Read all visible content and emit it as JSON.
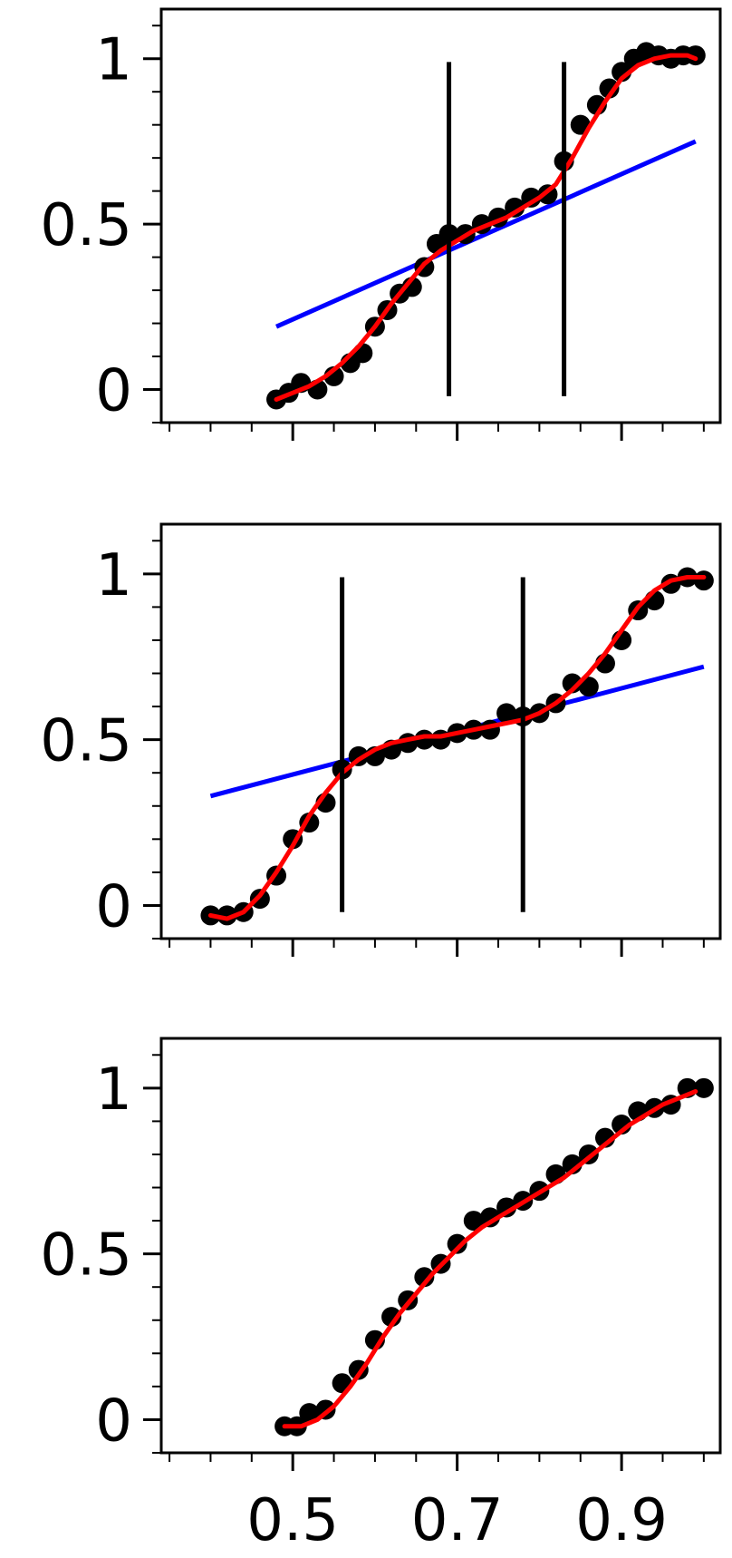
{
  "chart_data": [
    {
      "type": "scatter",
      "xlim": [
        0.34,
        1.02
      ],
      "ylim": [
        -0.1,
        1.15
      ],
      "yticks": [
        0,
        0.5,
        1
      ],
      "ytick_labels": [
        "0",
        "0.5",
        "1"
      ],
      "x_minor_step": 0.05,
      "y_minor_step": 0.1,
      "show_x_tick_labels": false,
      "points": {
        "color": "#000000",
        "x": [
          0.48,
          0.495,
          0.51,
          0.53,
          0.55,
          0.57,
          0.585,
          0.6,
          0.615,
          0.63,
          0.645,
          0.66,
          0.675,
          0.69,
          0.71,
          0.73,
          0.75,
          0.77,
          0.79,
          0.81,
          0.83,
          0.85,
          0.87,
          0.885,
          0.9,
          0.915,
          0.93,
          0.945,
          0.96,
          0.975,
          0.99
        ],
        "y": [
          -0.03,
          -0.01,
          0.02,
          0.0,
          0.04,
          0.08,
          0.11,
          0.19,
          0.24,
          0.29,
          0.31,
          0.37,
          0.44,
          0.47,
          0.47,
          0.5,
          0.52,
          0.55,
          0.58,
          0.59,
          0.69,
          0.8,
          0.86,
          0.91,
          0.96,
          1.0,
          1.02,
          1.01,
          1.0,
          1.01,
          1.01
        ]
      },
      "smooth_curve": {
        "color": "#ff0000",
        "x": [
          0.48,
          0.5,
          0.52,
          0.54,
          0.56,
          0.58,
          0.6,
          0.62,
          0.64,
          0.66,
          0.68,
          0.7,
          0.72,
          0.74,
          0.76,
          0.78,
          0.8,
          0.82,
          0.84,
          0.86,
          0.88,
          0.9,
          0.92,
          0.94,
          0.96,
          0.98,
          0.99
        ],
        "y": [
          -0.03,
          -0.01,
          0.01,
          0.04,
          0.08,
          0.13,
          0.19,
          0.26,
          0.32,
          0.38,
          0.42,
          0.45,
          0.48,
          0.5,
          0.52,
          0.55,
          0.58,
          0.62,
          0.7,
          0.79,
          0.87,
          0.94,
          0.98,
          1.0,
          1.01,
          1.01,
          1.0
        ]
      },
      "fit_line": {
        "color": "#0000ff",
        "x": [
          0.48,
          0.99
        ],
        "y": [
          0.19,
          0.75
        ]
      },
      "vlines": {
        "color": "#000000",
        "x": [
          0.69,
          0.83
        ],
        "y_range": [
          -0.02,
          0.99
        ]
      }
    },
    {
      "type": "scatter",
      "xlim": [
        0.34,
        1.02
      ],
      "ylim": [
        -0.1,
        1.15
      ],
      "yticks": [
        0,
        0.5,
        1
      ],
      "ytick_labels": [
        "0",
        "0.5",
        "1"
      ],
      "x_minor_step": 0.05,
      "y_minor_step": 0.1,
      "show_x_tick_labels": false,
      "points": {
        "color": "#000000",
        "x": [
          0.4,
          0.42,
          0.44,
          0.46,
          0.48,
          0.5,
          0.52,
          0.54,
          0.56,
          0.58,
          0.6,
          0.62,
          0.64,
          0.66,
          0.68,
          0.7,
          0.72,
          0.74,
          0.76,
          0.78,
          0.8,
          0.82,
          0.84,
          0.86,
          0.88,
          0.9,
          0.92,
          0.94,
          0.96,
          0.98,
          1.0
        ],
        "y": [
          -0.03,
          -0.03,
          -0.02,
          0.02,
          0.09,
          0.2,
          0.25,
          0.31,
          0.41,
          0.45,
          0.45,
          0.47,
          0.49,
          0.5,
          0.5,
          0.52,
          0.53,
          0.53,
          0.58,
          0.57,
          0.58,
          0.61,
          0.67,
          0.66,
          0.73,
          0.8,
          0.89,
          0.92,
          0.97,
          0.99,
          0.98
        ]
      },
      "smooth_curve": {
        "color": "#ff0000",
        "x": [
          0.4,
          0.42,
          0.44,
          0.46,
          0.48,
          0.5,
          0.52,
          0.54,
          0.56,
          0.58,
          0.6,
          0.62,
          0.64,
          0.66,
          0.68,
          0.7,
          0.72,
          0.74,
          0.76,
          0.78,
          0.8,
          0.82,
          0.84,
          0.86,
          0.88,
          0.9,
          0.92,
          0.94,
          0.96,
          0.98,
          1.0
        ],
        "y": [
          -0.03,
          -0.04,
          -0.02,
          0.03,
          0.1,
          0.18,
          0.27,
          0.34,
          0.4,
          0.44,
          0.47,
          0.49,
          0.5,
          0.51,
          0.51,
          0.52,
          0.53,
          0.54,
          0.55,
          0.56,
          0.58,
          0.61,
          0.65,
          0.7,
          0.76,
          0.83,
          0.9,
          0.95,
          0.98,
          0.99,
          0.99
        ]
      },
      "fit_line": {
        "color": "#0000ff",
        "x": [
          0.4,
          1.0
        ],
        "y": [
          0.33,
          0.72
        ]
      },
      "vlines": {
        "color": "#000000",
        "x": [
          0.56,
          0.78
        ],
        "y_range": [
          -0.02,
          0.99
        ]
      }
    },
    {
      "type": "scatter",
      "xlim": [
        0.34,
        1.02
      ],
      "ylim": [
        -0.1,
        1.15
      ],
      "yticks": [
        0,
        0.5,
        1
      ],
      "ytick_labels": [
        "0",
        "0.5",
        "1"
      ],
      "xticks": [
        0.5,
        0.7,
        0.9
      ],
      "xtick_labels": [
        "0.5",
        "0.7",
        "0.9"
      ],
      "x_minor_step": 0.05,
      "y_minor_step": 0.1,
      "show_x_tick_labels": true,
      "points": {
        "color": "#000000",
        "x": [
          0.49,
          0.505,
          0.52,
          0.54,
          0.56,
          0.58,
          0.6,
          0.62,
          0.64,
          0.66,
          0.68,
          0.7,
          0.72,
          0.74,
          0.76,
          0.78,
          0.8,
          0.82,
          0.84,
          0.86,
          0.88,
          0.9,
          0.92,
          0.94,
          0.96,
          0.98,
          1.0
        ],
        "y": [
          -0.02,
          -0.02,
          0.02,
          0.03,
          0.11,
          0.15,
          0.24,
          0.31,
          0.36,
          0.43,
          0.47,
          0.53,
          0.6,
          0.61,
          0.64,
          0.66,
          0.69,
          0.74,
          0.77,
          0.8,
          0.85,
          0.89,
          0.93,
          0.94,
          0.95,
          1.0,
          1.0
        ]
      },
      "smooth_curve": {
        "color": "#ff0000",
        "x": [
          0.49,
          0.51,
          0.53,
          0.55,
          0.57,
          0.59,
          0.61,
          0.63,
          0.65,
          0.67,
          0.69,
          0.71,
          0.73,
          0.75,
          0.77,
          0.79,
          0.81,
          0.83,
          0.85,
          0.87,
          0.89,
          0.91,
          0.93,
          0.95,
          0.97,
          0.99
        ],
        "y": [
          -0.02,
          -0.02,
          0.0,
          0.04,
          0.1,
          0.17,
          0.25,
          0.32,
          0.38,
          0.44,
          0.49,
          0.54,
          0.58,
          0.61,
          0.64,
          0.67,
          0.7,
          0.73,
          0.77,
          0.81,
          0.85,
          0.89,
          0.92,
          0.95,
          0.97,
          0.99
        ]
      },
      "fit_line": null,
      "vlines": null
    }
  ]
}
